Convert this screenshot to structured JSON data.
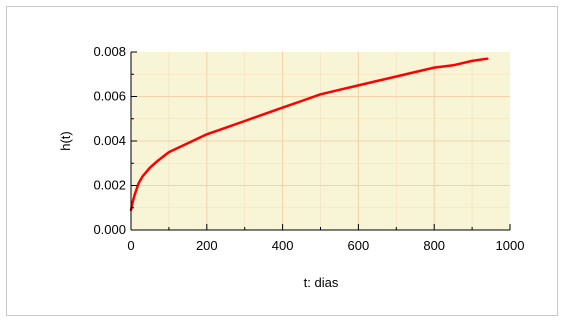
{
  "chart_data": {
    "type": "line",
    "title": "",
    "xlabel": "t: dias",
    "ylabel": "h(t)",
    "xlim": [
      0,
      1000
    ],
    "ylim": [
      0,
      0.008
    ],
    "x_ticks": [
      "0",
      "200",
      "400",
      "600",
      "800",
      "1000"
    ],
    "y_ticks": [
      "0.000",
      "0.002",
      "0.004",
      "0.006",
      "0.008"
    ],
    "grid": true,
    "colors": {
      "plot_background": "#f7f5d6",
      "grid": "#f2d2a8",
      "series": "#ff0000"
    },
    "series": [
      {
        "x": [
          0,
          5,
          10,
          20,
          30,
          50,
          70,
          100,
          150,
          200,
          250,
          300,
          350,
          400,
          450,
          500,
          550,
          600,
          650,
          700,
          750,
          800,
          850,
          900,
          940
        ],
        "y": [
          0.0009,
          0.0013,
          0.0016,
          0.0021,
          0.0024,
          0.0028,
          0.0031,
          0.0035,
          0.0039,
          0.0043,
          0.0046,
          0.0049,
          0.0052,
          0.0055,
          0.0058,
          0.0061,
          0.0063,
          0.0065,
          0.0067,
          0.0069,
          0.0071,
          0.0073,
          0.0074,
          0.0076,
          0.0077
        ]
      }
    ]
  }
}
